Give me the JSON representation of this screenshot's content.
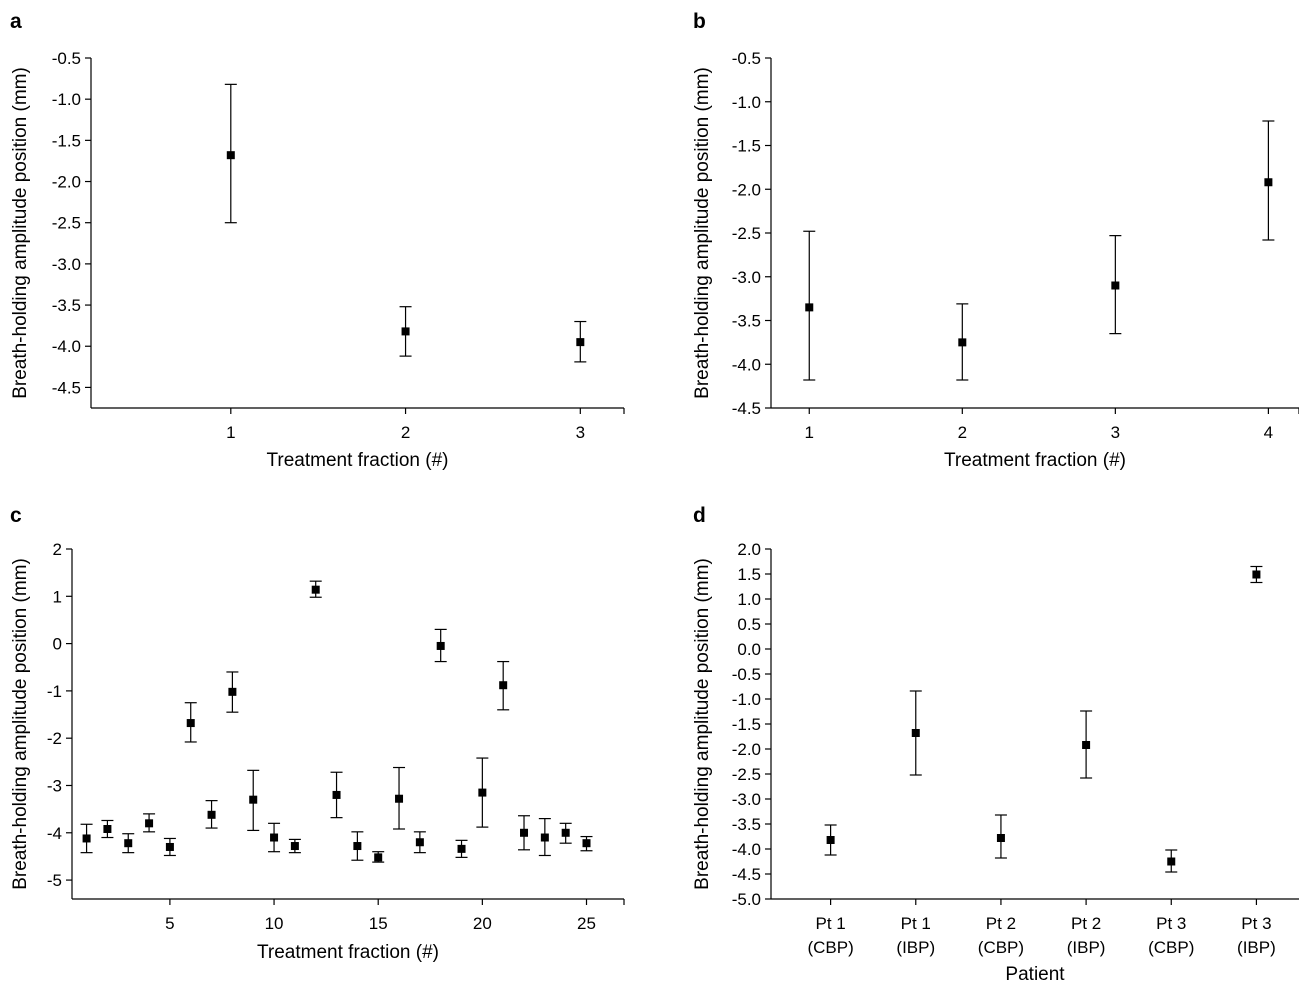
{
  "chart_data": [
    {
      "panel": "a",
      "type": "scatter",
      "xlabel": "Treatment fraction (#)",
      "ylabel": "Breath-holding amplitude position (mm)",
      "x_ticks": [
        "1",
        "2",
        "3"
      ],
      "y_ticks": [
        "-0.5",
        "-1.0",
        "-1.5",
        "-2.0",
        "-2.5",
        "-3.0",
        "-3.5",
        "-4.0",
        "-4.5"
      ],
      "xlim": [
        0.2,
        3.25
      ],
      "ylim": [
        -4.75,
        -0.5
      ],
      "points": [
        {
          "x": 1,
          "y": -1.68,
          "err_low": -2.5,
          "err_high": -0.82
        },
        {
          "x": 2,
          "y": -3.82,
          "err_low": -4.12,
          "err_high": -3.52
        },
        {
          "x": 3,
          "y": -3.95,
          "err_low": -4.19,
          "err_high": -3.7
        }
      ]
    },
    {
      "panel": "b",
      "type": "scatter",
      "xlabel": "Treatment fraction (#)",
      "ylabel": "Breath-holding amplitude position (mm)",
      "x_ticks": [
        "1",
        "2",
        "3",
        "4"
      ],
      "y_ticks": [
        "-0.5",
        "-1.0",
        "-1.5",
        "-2.0",
        "-2.5",
        "-3.0",
        "-3.5",
        "-4.0",
        "-4.5"
      ],
      "xlim": [
        0.75,
        4.2
      ],
      "ylim": [
        -4.5,
        -0.5
      ],
      "points": [
        {
          "x": 1,
          "y": -3.35,
          "err_low": -4.18,
          "err_high": -2.48
        },
        {
          "x": 2,
          "y": -3.75,
          "err_low": -4.18,
          "err_high": -3.31
        },
        {
          "x": 3,
          "y": -3.1,
          "err_low": -3.65,
          "err_high": -2.53
        },
        {
          "x": 4,
          "y": -1.92,
          "err_low": -2.58,
          "err_high": -1.22
        }
      ]
    },
    {
      "panel": "c",
      "type": "scatter",
      "xlabel": "Treatment fraction (#)",
      "ylabel": "Breath-holding amplitude position (mm)",
      "x_ticks": [
        "5",
        "10",
        "15",
        "20",
        "25"
      ],
      "y_ticks": [
        "2",
        "1",
        "0",
        "-1",
        "-2",
        "-3",
        "-4",
        "-5"
      ],
      "xlim": [
        0.3,
        26.8
      ],
      "ylim": [
        -5.4,
        2.0
      ],
      "points": [
        {
          "x": 1,
          "y": -4.12,
          "err_low": -4.42,
          "err_high": -3.82
        },
        {
          "x": 2,
          "y": -3.92,
          "err_low": -4.1,
          "err_high": -3.74
        },
        {
          "x": 3,
          "y": -4.22,
          "err_low": -4.42,
          "err_high": -4.02
        },
        {
          "x": 4,
          "y": -3.8,
          "err_low": -3.98,
          "err_high": -3.6
        },
        {
          "x": 5,
          "y": -4.3,
          "err_low": -4.48,
          "err_high": -4.12
        },
        {
          "x": 6,
          "y": -1.68,
          "err_low": -2.08,
          "err_high": -1.25
        },
        {
          "x": 7,
          "y": -3.62,
          "err_low": -3.9,
          "err_high": -3.32
        },
        {
          "x": 8,
          "y": -1.02,
          "err_low": -1.45,
          "err_high": -0.6
        },
        {
          "x": 9,
          "y": -3.3,
          "err_low": -3.95,
          "err_high": -2.68
        },
        {
          "x": 10,
          "y": -4.1,
          "err_low": -4.4,
          "err_high": -3.8
        },
        {
          "x": 11,
          "y": -4.28,
          "err_low": -4.42,
          "err_high": -4.14
        },
        {
          "x": 12,
          "y": 1.14,
          "err_low": 0.98,
          "err_high": 1.32
        },
        {
          "x": 13,
          "y": -3.2,
          "err_low": -3.68,
          "err_high": -2.72
        },
        {
          "x": 14,
          "y": -4.28,
          "err_low": -4.58,
          "err_high": -3.98
        },
        {
          "x": 15,
          "y": -4.52,
          "err_low": -4.62,
          "err_high": -4.4
        },
        {
          "x": 16,
          "y": -3.28,
          "err_low": -3.92,
          "err_high": -2.62
        },
        {
          "x": 17,
          "y": -4.2,
          "err_low": -4.42,
          "err_high": -3.98
        },
        {
          "x": 18,
          "y": -0.05,
          "err_low": -0.38,
          "err_high": 0.3
        },
        {
          "x": 19,
          "y": -4.34,
          "err_low": -4.52,
          "err_high": -4.16
        },
        {
          "x": 20,
          "y": -3.15,
          "err_low": -3.88,
          "err_high": -2.42
        },
        {
          "x": 21,
          "y": -0.88,
          "err_low": -1.4,
          "err_high": -0.38
        },
        {
          "x": 22,
          "y": -4.0,
          "err_low": -4.36,
          "err_high": -3.64
        },
        {
          "x": 23,
          "y": -4.1,
          "err_low": -4.48,
          "err_high": -3.7
        },
        {
          "x": 24,
          "y": -4.0,
          "err_low": -4.22,
          "err_high": -3.8
        },
        {
          "x": 25,
          "y": -4.22,
          "err_low": -4.38,
          "err_high": -4.08
        }
      ]
    },
    {
      "panel": "d",
      "type": "scatter",
      "xlabel": "Patient",
      "ylabel": "Breath-holding amplitude position (mm)",
      "categories": [
        {
          "line1": "Pt 1",
          "line2": "(CBP)"
        },
        {
          "line1": "Pt 1",
          "line2": "(IBP)"
        },
        {
          "line1": "Pt 2",
          "line2": "(CBP)"
        },
        {
          "line1": "Pt 2",
          "line2": "(IBP)"
        },
        {
          "line1": "Pt 3",
          "line2": "(CBP)"
        },
        {
          "line1": "Pt 3",
          "line2": "(IBP)"
        }
      ],
      "y_ticks": [
        "2.0",
        "1.5",
        "1.0",
        "0.5",
        "0.0",
        "-0.5",
        "-1.0",
        "-1.5",
        "-2.0",
        "-2.5",
        "-3.0",
        "-3.5",
        "-4.0",
        "-4.5",
        "-5.0"
      ],
      "ylim": [
        -5.0,
        2.0
      ],
      "points": [
        {
          "x": 1,
          "y": -3.82,
          "err_low": -4.12,
          "err_high": -3.52
        },
        {
          "x": 2,
          "y": -1.68,
          "err_low": -2.52,
          "err_high": -0.84
        },
        {
          "x": 3,
          "y": -3.78,
          "err_low": -4.18,
          "err_high": -3.32
        },
        {
          "x": 4,
          "y": -1.92,
          "err_low": -2.58,
          "err_high": -1.24
        },
        {
          "x": 5,
          "y": -4.25,
          "err_low": -4.46,
          "err_high": -4.02
        },
        {
          "x": 6,
          "y": 1.49,
          "err_low": 1.33,
          "err_high": 1.65
        }
      ]
    }
  ]
}
